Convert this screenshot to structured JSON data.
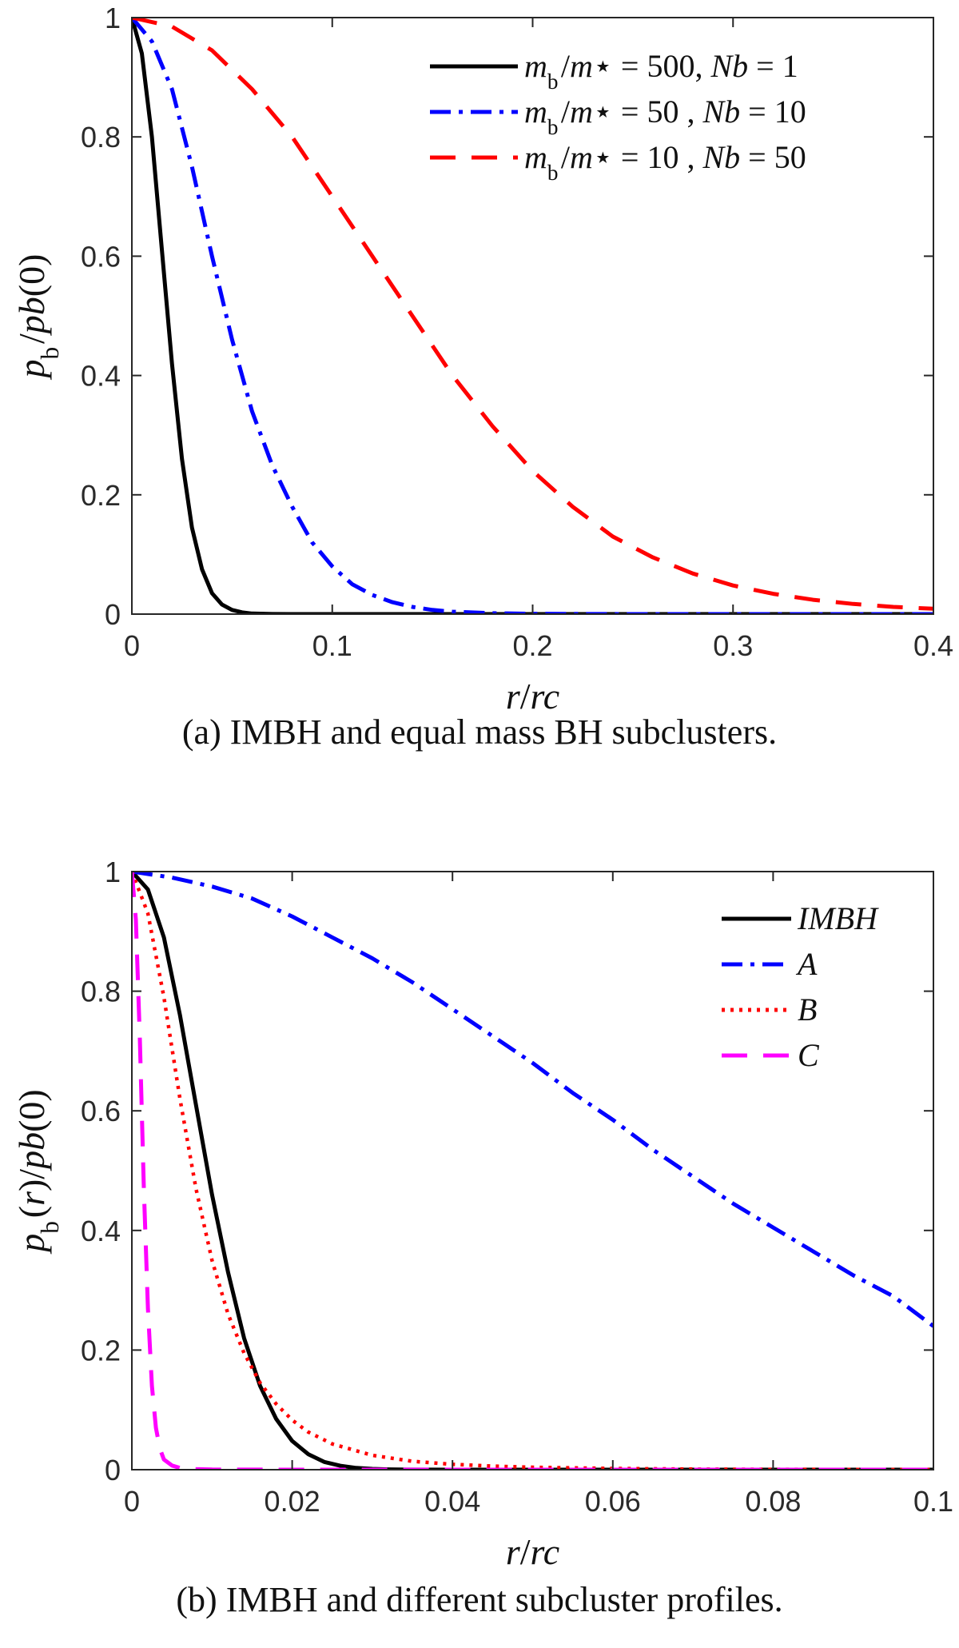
{
  "chart_data": [
    {
      "type": "line",
      "caption": "(a)  IMBH and equal mass BH subclusters.",
      "xlabel": "r/r_c",
      "ylabel": "p_b/p_b(0)",
      "xlim": [
        0,
        0.4
      ],
      "ylim": [
        0,
        1
      ],
      "xticks": [
        0,
        0.1,
        0.2,
        0.3,
        0.4
      ],
      "xtick_labels": [
        "0",
        "0.1",
        "0.2",
        "0.3",
        "0.4"
      ],
      "yticks": [
        0,
        0.2,
        0.4,
        0.6,
        0.8,
        1
      ],
      "ytick_labels": [
        "0",
        "0.2",
        "0.4",
        "0.6",
        "0.8",
        "1"
      ],
      "legend_position": "top-right",
      "series": [
        {
          "name": "m_b/m_⋆ = 500, N_b = 1",
          "color": "#000000",
          "style": "solid",
          "x": [
            0,
            0.005,
            0.01,
            0.015,
            0.02,
            0.025,
            0.03,
            0.035,
            0.04,
            0.045,
            0.05,
            0.055,
            0.06,
            0.07,
            0.08,
            0.1,
            0.2,
            0.3,
            0.4
          ],
          "values": [
            1,
            0.94,
            0.8,
            0.61,
            0.42,
            0.26,
            0.145,
            0.075,
            0.035,
            0.016,
            0.007,
            0.003,
            0.001,
            0.0002,
            0,
            0,
            0,
            0,
            0
          ]
        },
        {
          "name": "m_b/m_⋆ = 50 , N_b = 10",
          "color": "#0000ff",
          "style": "dashdot",
          "x": [
            0,
            0.01,
            0.02,
            0.03,
            0.04,
            0.05,
            0.06,
            0.07,
            0.08,
            0.09,
            0.1,
            0.11,
            0.12,
            0.13,
            0.14,
            0.15,
            0.16,
            0.18,
            0.2,
            0.25,
            0.3,
            0.4
          ],
          "values": [
            1,
            0.96,
            0.88,
            0.75,
            0.6,
            0.46,
            0.34,
            0.25,
            0.18,
            0.12,
            0.08,
            0.05,
            0.032,
            0.02,
            0.012,
            0.007,
            0.004,
            0.0015,
            0.0005,
            0,
            0,
            0
          ]
        },
        {
          "name": "m_b/m_⋆ = 10 , N_b = 50",
          "color": "#ff0000",
          "style": "dashed",
          "x": [
            0,
            0.02,
            0.04,
            0.06,
            0.08,
            0.1,
            0.12,
            0.14,
            0.16,
            0.18,
            0.2,
            0.22,
            0.24,
            0.26,
            0.28,
            0.3,
            0.32,
            0.34,
            0.36,
            0.38,
            0.4
          ],
          "values": [
            1,
            0.985,
            0.945,
            0.88,
            0.8,
            0.7,
            0.6,
            0.5,
            0.4,
            0.315,
            0.24,
            0.18,
            0.13,
            0.095,
            0.068,
            0.048,
            0.034,
            0.024,
            0.017,
            0.012,
            0.009
          ]
        }
      ]
    },
    {
      "type": "line",
      "caption": "(b)  IMBH and different subcluster profiles.",
      "xlabel": "r/r_c",
      "ylabel": "p_b(r)/p_b(0)",
      "xlim": [
        0,
        0.1
      ],
      "ylim": [
        0,
        1
      ],
      "xticks": [
        0,
        0.02,
        0.04,
        0.06,
        0.08,
        0.1
      ],
      "xtick_labels": [
        "0",
        "0.02",
        "0.04",
        "0.06",
        "0.08",
        "0.1"
      ],
      "yticks": [
        0,
        0.2,
        0.4,
        0.6,
        0.8,
        1
      ],
      "ytick_labels": [
        "0",
        "0.2",
        "0.4",
        "0.6",
        "0.8",
        "1"
      ],
      "legend_position": "top-right",
      "series": [
        {
          "name": "IMBH",
          "color": "#000000",
          "style": "solid",
          "x": [
            0,
            0.002,
            0.004,
            0.006,
            0.008,
            0.01,
            0.012,
            0.014,
            0.016,
            0.018,
            0.02,
            0.022,
            0.024,
            0.026,
            0.028,
            0.03,
            0.032,
            0.035,
            0.04,
            0.06,
            0.08,
            0.1
          ],
          "values": [
            1,
            0.97,
            0.89,
            0.76,
            0.61,
            0.46,
            0.33,
            0.22,
            0.14,
            0.085,
            0.048,
            0.026,
            0.013,
            0.0065,
            0.003,
            0.0013,
            0.0006,
            0.0002,
            0,
            0,
            0,
            0
          ]
        },
        {
          "name": "A",
          "color": "#0000ff",
          "style": "dashdot",
          "x": [
            0,
            0.005,
            0.01,
            0.015,
            0.02,
            0.025,
            0.03,
            0.035,
            0.04,
            0.045,
            0.05,
            0.055,
            0.06,
            0.065,
            0.07,
            0.075,
            0.08,
            0.085,
            0.09,
            0.095,
            0.1
          ],
          "values": [
            1,
            0.99,
            0.975,
            0.955,
            0.925,
            0.89,
            0.855,
            0.815,
            0.77,
            0.725,
            0.68,
            0.63,
            0.585,
            0.535,
            0.49,
            0.445,
            0.405,
            0.365,
            0.325,
            0.29,
            0.24
          ]
        },
        {
          "name": "B",
          "color": "#ff0000",
          "style": "dotted",
          "x": [
            0,
            0.002,
            0.004,
            0.006,
            0.008,
            0.01,
            0.012,
            0.014,
            0.016,
            0.018,
            0.02,
            0.022,
            0.025,
            0.03,
            0.035,
            0.04,
            0.045,
            0.05,
            0.06,
            0.07,
            0.08,
            0.1
          ],
          "values": [
            1,
            0.93,
            0.79,
            0.62,
            0.47,
            0.35,
            0.26,
            0.195,
            0.145,
            0.11,
            0.083,
            0.063,
            0.043,
            0.024,
            0.014,
            0.009,
            0.006,
            0.004,
            0.002,
            0.001,
            0.0005,
            0.0002
          ]
        },
        {
          "name": "C",
          "color": "#ff00ff",
          "style": "dashed",
          "x": [
            0,
            0.0005,
            0.001,
            0.0015,
            0.002,
            0.0025,
            0.003,
            0.0035,
            0.004,
            0.005,
            0.006,
            0.008,
            0.01,
            0.02,
            0.04,
            0.06,
            0.08,
            0.1
          ],
          "values": [
            1,
            0.92,
            0.72,
            0.47,
            0.27,
            0.14,
            0.07,
            0.035,
            0.017,
            0.007,
            0.003,
            0.001,
            0.0003,
            0,
            0,
            0,
            0,
            0
          ]
        }
      ]
    }
  ]
}
